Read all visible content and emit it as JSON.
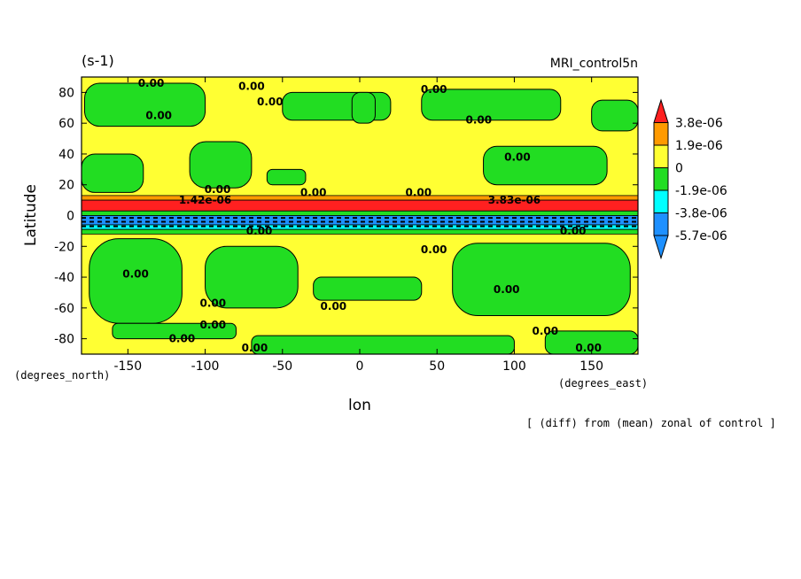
{
  "chart_data": {
    "type": "heatmap",
    "title": "MRI_control5n",
    "units": "(s-1)",
    "xlabel": "lon",
    "ylabel": "Latitude",
    "x_units": "(degrees_east)",
    "y_units": "(degrees_north)",
    "caption": "[ (diff) from (mean) zonal of control ]",
    "xlim": [
      -180,
      180
    ],
    "ylim": [
      -90,
      90
    ],
    "x_ticks": [
      -150,
      -100,
      -50,
      0,
      50,
      100,
      150
    ],
    "x_tick_labels": [
      "-150",
      "-100",
      "-50",
      "0",
      "50",
      "100",
      "150"
    ],
    "y_ticks": [
      -80,
      -60,
      -40,
      -20,
      0,
      20,
      40,
      60,
      80
    ],
    "y_tick_labels": [
      "-80",
      "-60",
      "-40",
      "-20",
      "0",
      "20",
      "40",
      "60",
      "80"
    ],
    "levels": [
      {
        "label": "3.8e-06",
        "color": "#ff2020"
      },
      {
        "label": "1.9e-06",
        "color": "#ff9a00"
      },
      {
        "label": "0",
        "color": "#ffff33"
      },
      {
        "label": "-1.9e-06",
        "color": "#22dd22"
      },
      {
        "label": "-3.8e-06",
        "color": "#00ffff"
      },
      {
        "label": "-5.7e-06",
        "color": "#1e90ff"
      }
    ],
    "colorbar_colors": [
      "#ff2020",
      "#ff9a00",
      "#ffff33",
      "#22dd22",
      "#00ffff",
      "#1e90ff",
      "#1e90ff"
    ],
    "zonal_bands": [
      {
        "lat_min": 10,
        "lat_max": 13,
        "level": "1.9e-06"
      },
      {
        "lat_min": 3,
        "lat_max": 10,
        "level": "3.8e-06"
      },
      {
        "lat_min": 0,
        "lat_max": 3,
        "level": "-1.9e-06"
      },
      {
        "lat_min": -6,
        "lat_max": 0,
        "level": "-5.7e-06"
      },
      {
        "lat_min": -9,
        "lat_max": -6,
        "level": "-3.8e-06"
      },
      {
        "lat_min": -12,
        "lat_max": -9,
        "level": "-1.9e-06"
      }
    ],
    "negative_regions": [
      {
        "lon": [
          -178,
          -100
        ],
        "lat": [
          58,
          86
        ]
      },
      {
        "lon": [
          -50,
          20
        ],
        "lat": [
          62,
          80
        ]
      },
      {
        "lon": [
          40,
          130
        ],
        "lat": [
          62,
          82
        ]
      },
      {
        "lon": [
          150,
          180
        ],
        "lat": [
          55,
          75
        ]
      },
      {
        "lon": [
          -180,
          -140
        ],
        "lat": [
          15,
          40
        ]
      },
      {
        "lon": [
          -110,
          -70
        ],
        "lat": [
          18,
          48
        ]
      },
      {
        "lon": [
          -60,
          -35
        ],
        "lat": [
          20,
          30
        ]
      },
      {
        "lon": [
          -5,
          10
        ],
        "lat": [
          60,
          80
        ]
      },
      {
        "lon": [
          80,
          160
        ],
        "lat": [
          20,
          45
        ]
      },
      {
        "lon": [
          -175,
          -115
        ],
        "lat": [
          -70,
          -15
        ]
      },
      {
        "lon": [
          -100,
          -40
        ],
        "lat": [
          -60,
          -20
        ]
      },
      {
        "lon": [
          5,
          60
        ],
        "lat": [
          -20,
          -38
        ]
      },
      {
        "lon": [
          60,
          175
        ],
        "lat": [
          -65,
          -18
        ]
      },
      {
        "lon": [
          -160,
          -80
        ],
        "lat": [
          -80,
          -70
        ]
      },
      {
        "lon": [
          -70,
          100
        ],
        "lat": [
          -90,
          -78
        ]
      },
      {
        "lon": [
          120,
          180
        ],
        "lat": [
          -90,
          -75
        ]
      },
      {
        "lon": [
          -30,
          40
        ],
        "lat": [
          -55,
          -40
        ]
      }
    ],
    "contour_labels": [
      {
        "lon": -135,
        "lat": 86,
        "text": "0.00"
      },
      {
        "lon": -70,
        "lat": 84,
        "text": "0.00"
      },
      {
        "lon": -58,
        "lat": 74,
        "text": "0.00"
      },
      {
        "lon": 48,
        "lat": 82,
        "text": "0.00"
      },
      {
        "lon": -130,
        "lat": 65,
        "text": "0.00"
      },
      {
        "lon": 77,
        "lat": 62,
        "text": "0.00"
      },
      {
        "lon": 102,
        "lat": 38,
        "text": "0.00"
      },
      {
        "lon": -92,
        "lat": 17,
        "text": "0.00"
      },
      {
        "lon": -30,
        "lat": 15,
        "text": "0.00"
      },
      {
        "lon": 38,
        "lat": 15,
        "text": "0.00"
      },
      {
        "lon": -100,
        "lat": 10,
        "text": "1.42e-06"
      },
      {
        "lon": 100,
        "lat": 10,
        "text": "3.83e-06"
      },
      {
        "lon": -65,
        "lat": -10,
        "text": "0.00"
      },
      {
        "lon": 138,
        "lat": -10,
        "text": "0.00"
      },
      {
        "lon": 48,
        "lat": -22,
        "text": "0.00"
      },
      {
        "lon": -145,
        "lat": -38,
        "text": "0.00"
      },
      {
        "lon": 95,
        "lat": -48,
        "text": "0.00"
      },
      {
        "lon": -95,
        "lat": -57,
        "text": "0.00"
      },
      {
        "lon": -17,
        "lat": -59,
        "text": "0.00"
      },
      {
        "lon": -95,
        "lat": -71,
        "text": "0.00"
      },
      {
        "lon": 120,
        "lat": -75,
        "text": "0.00"
      },
      {
        "lon": -115,
        "lat": -80,
        "text": "0.00"
      },
      {
        "lon": -68,
        "lat": -86,
        "text": "0.00"
      },
      {
        "lon": 148,
        "lat": -86,
        "text": "0.00"
      }
    ]
  }
}
